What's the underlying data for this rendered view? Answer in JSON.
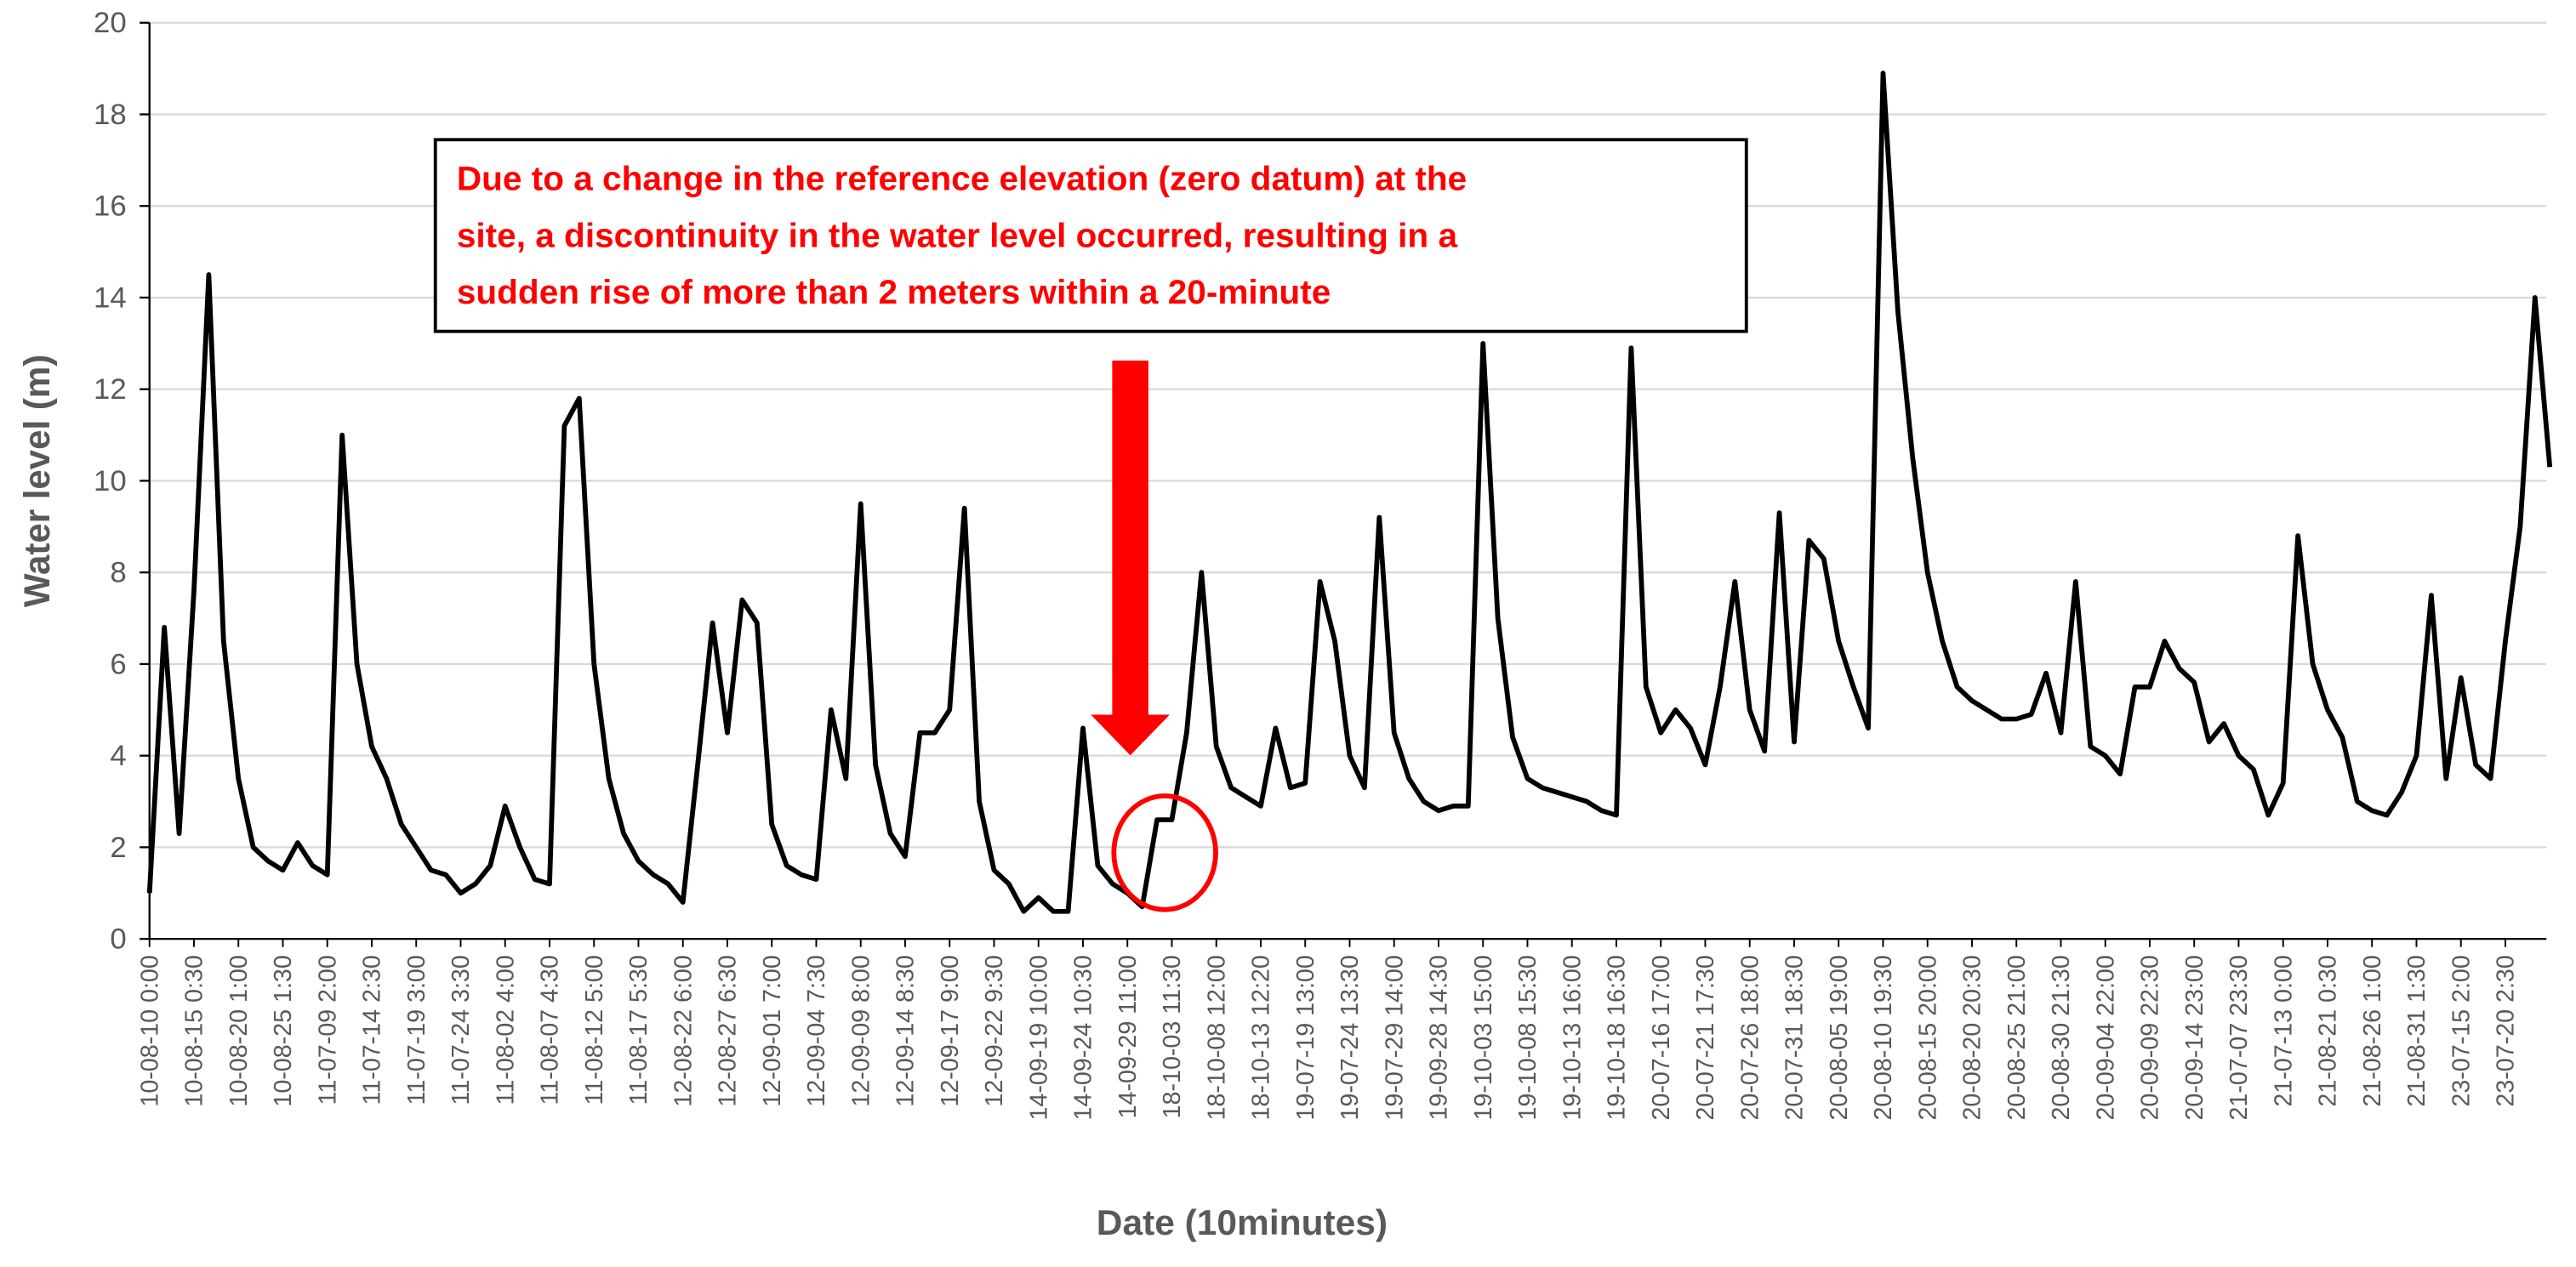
{
  "chart_data": {
    "type": "line",
    "x_label": "Date (10minutes)",
    "y_label": "Water level (m)",
    "annotation": [
      "Due to a change in the reference elevation (zero datum) at the",
      "site, a discontinuity in the water level occurred, resulting in a",
      "sudden rise of more than 2 meters within a 20-minute"
    ],
    "color": "#000000",
    "annotation_color": "#ff0000",
    "grid": true,
    "ylim": [
      0,
      20
    ],
    "yticks": [
      0,
      2,
      4,
      6,
      8,
      10,
      12,
      14,
      16,
      18,
      20
    ],
    "categories": [
      "10-08-10 0:00",
      null,
      null,
      "10-08-15 0:30",
      null,
      null,
      "10-08-20 1:00",
      null,
      null,
      "10-08-25 1:30",
      null,
      null,
      "11-07-09 2:00",
      null,
      null,
      "11-07-14 2:30",
      null,
      null,
      "11-07-19 3:00",
      null,
      null,
      "11-07-24 3:30",
      null,
      null,
      "11-08-02 4:00",
      null,
      null,
      "11-08-07 4:30",
      null,
      null,
      "11-08-12 5:00",
      null,
      null,
      "11-08-17 5:30",
      null,
      null,
      "12-08-22 6:00",
      null,
      null,
      "12-08-27 6:30",
      null,
      null,
      "12-09-01 7:00",
      null,
      null,
      "12-09-04 7:30",
      null,
      null,
      "12-09-09 8:00",
      null,
      null,
      "12-09-14 8:30",
      null,
      null,
      "12-09-17 9:00",
      null,
      null,
      "12-09-22 9:30",
      null,
      null,
      "14-09-19 10:00",
      null,
      null,
      "14-09-24 10:30",
      null,
      null,
      "14-09-29 11:00",
      null,
      null,
      "18-10-03 11:30",
      null,
      null,
      "18-10-08 12:00",
      null,
      null,
      "18-10-13 12:20",
      null,
      null,
      "19-07-19 13:00",
      null,
      null,
      "19-07-24 13:30",
      null,
      null,
      "19-07-29 14:00",
      null,
      null,
      "19-09-28 14:30",
      null,
      null,
      "19-10-03 15:00",
      null,
      null,
      "19-10-08 15:30",
      null,
      null,
      "19-10-13 16:00",
      null,
      null,
      "19-10-18 16:30",
      null,
      null,
      "20-07-16 17:00",
      null,
      null,
      "20-07-21 17:30",
      null,
      null,
      "20-07-26 18:00",
      null,
      null,
      "20-07-31 18:30",
      null,
      null,
      "20-08-05 19:00",
      null,
      null,
      "20-08-10 19:30",
      null,
      null,
      "20-08-15 20:00",
      null,
      null,
      "20-08-20 20:30",
      null,
      null,
      "20-08-25 21:00",
      null,
      null,
      "20-08-30 21:30",
      null,
      null,
      "20-09-04 22:00",
      null,
      null,
      "20-09-09 22:30",
      null,
      null,
      "20-09-14 23:00",
      null,
      null,
      "21-07-07 23:30",
      null,
      null,
      "21-07-13 0:00",
      null,
      null,
      "21-08-21 0:30",
      null,
      null,
      "21-08-26 1:00",
      null,
      null,
      "21-08-31 1:30",
      null,
      null,
      "23-07-15 2:00",
      null,
      null,
      "23-07-20 2:30",
      null,
      null,
      null
    ],
    "values": [
      1.0,
      6.8,
      2.3,
      7.6,
      14.5,
      6.5,
      3.5,
      2.0,
      1.7,
      1.5,
      2.1,
      1.6,
      1.4,
      11.0,
      6.0,
      4.2,
      3.5,
      2.5,
      2.0,
      1.5,
      1.4,
      1.0,
      1.2,
      1.6,
      2.9,
      2.0,
      1.3,
      1.2,
      11.2,
      11.8,
      6.0,
      3.5,
      2.3,
      1.7,
      1.4,
      1.2,
      0.8,
      3.8,
      6.9,
      4.5,
      7.4,
      6.9,
      2.5,
      1.6,
      1.4,
      1.3,
      5.0,
      3.5,
      9.5,
      3.8,
      2.3,
      1.8,
      4.5,
      4.5,
      5.0,
      9.4,
      3.0,
      1.5,
      1.2,
      0.6,
      0.9,
      0.6,
      0.6,
      4.6,
      1.6,
      1.2,
      1.0,
      0.7,
      2.6,
      2.6,
      4.5,
      8.0,
      4.2,
      3.3,
      3.1,
      2.9,
      4.6,
      3.3,
      3.4,
      7.8,
      6.5,
      4.0,
      3.3,
      9.2,
      4.5,
      3.5,
      3.0,
      2.8,
      2.9,
      2.9,
      13.0,
      7.0,
      4.4,
      3.5,
      3.3,
      3.2,
      3.1,
      3.0,
      2.8,
      2.7,
      12.9,
      5.5,
      4.5,
      5.0,
      4.6,
      3.8,
      5.5,
      7.8,
      5.0,
      4.1,
      9.3,
      4.3,
      8.7,
      8.3,
      6.5,
      5.5,
      4.6,
      18.9,
      13.7,
      10.5,
      8.0,
      6.5,
      5.5,
      5.2,
      5.0,
      4.8,
      4.8,
      4.9,
      5.8,
      4.5,
      7.8,
      4.2,
      4.0,
      3.6,
      5.5,
      5.5,
      6.5,
      5.9,
      5.6,
      4.3,
      4.7,
      4.0,
      3.7,
      2.7,
      3.4,
      8.8,
      6.0,
      5.0,
      4.4,
      3.0,
      2.8,
      2.7,
      3.2,
      4.0,
      7.5,
      3.5,
      5.7,
      3.8,
      3.5,
      6.5,
      9.0,
      14.0,
      10.3
    ]
  }
}
